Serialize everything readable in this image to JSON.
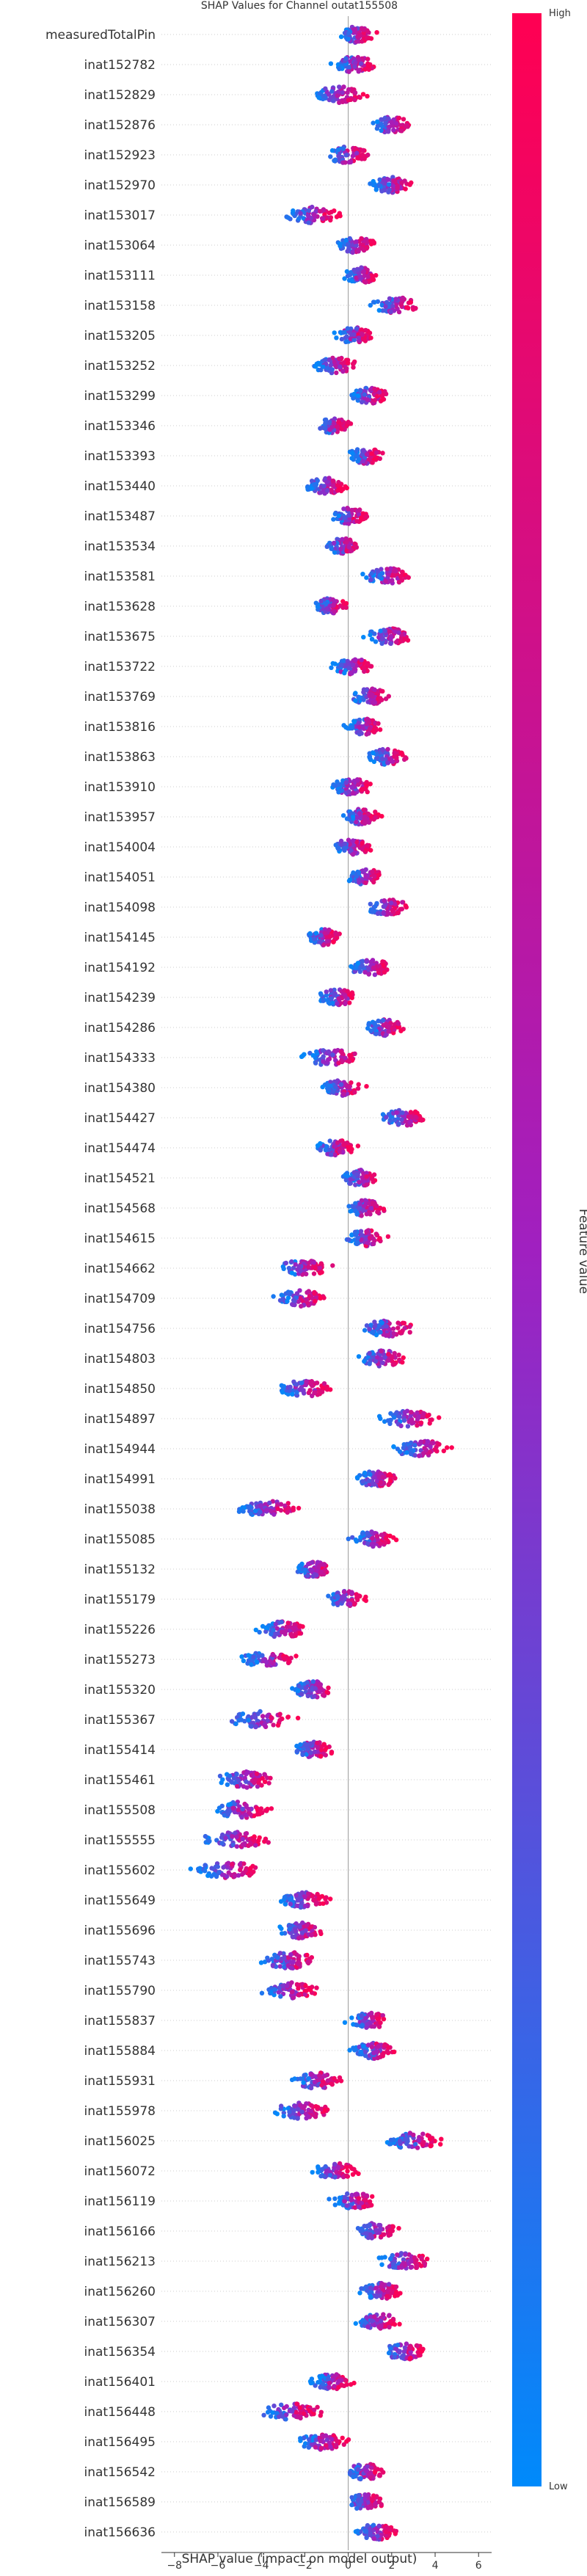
{
  "chart_data": {
    "type": "scatter",
    "subtype": "shap-beeswarm",
    "title": "SHAP Values for Channel outat155508",
    "xlabel": "SHAP value (impact on model output)",
    "ylabel": "",
    "xlim": [
      -8.6,
      6.6
    ],
    "xticks": [
      -8,
      -6,
      -4,
      -2,
      0,
      2,
      4,
      6
    ],
    "grid": false,
    "colorbar": {
      "label": "Feature value",
      "high_label": "High",
      "low_label": "Low",
      "low_color": "#008afb",
      "mid_color": "#a020c0",
      "high_color": "#ff0052"
    },
    "features": [
      {
        "name": "measuredTotalPin",
        "center": 0.4,
        "spread": 0.8,
        "high_dir": 1
      },
      {
        "name": "inat152782",
        "center": 0.3,
        "spread": 1.0,
        "high_dir": 1
      },
      {
        "name": "inat152829",
        "center": -0.4,
        "spread": 1.2,
        "high_dir": 1
      },
      {
        "name": "inat152876",
        "center": 2.0,
        "spread": 1.0,
        "high_dir": 1
      },
      {
        "name": "inat152923",
        "center": -0.1,
        "spread": 1.0,
        "high_dir": 1
      },
      {
        "name": "inat152970",
        "center": 2.0,
        "spread": 1.0,
        "high_dir": 1
      },
      {
        "name": "inat153017",
        "center": -1.6,
        "spread": 1.2,
        "high_dir": 1
      },
      {
        "name": "inat153064",
        "center": 0.4,
        "spread": 0.9,
        "high_dir": 1
      },
      {
        "name": "inat153111",
        "center": 0.6,
        "spread": 0.8,
        "high_dir": 1
      },
      {
        "name": "inat153158",
        "center": 2.2,
        "spread": 1.1,
        "high_dir": 1
      },
      {
        "name": "inat153205",
        "center": 0.3,
        "spread": 0.9,
        "high_dir": 1
      },
      {
        "name": "inat153252",
        "center": -0.6,
        "spread": 1.0,
        "high_dir": 1
      },
      {
        "name": "inat153299",
        "center": 1.0,
        "spread": 0.9,
        "high_dir": 1
      },
      {
        "name": "inat153346",
        "center": -0.7,
        "spread": 0.8,
        "high_dir": 1
      },
      {
        "name": "inat153393",
        "center": 0.8,
        "spread": 0.8,
        "high_dir": 1
      },
      {
        "name": "inat153440",
        "center": -1.0,
        "spread": 1.0,
        "high_dir": 1
      },
      {
        "name": "inat153487",
        "center": 0.1,
        "spread": 0.9,
        "high_dir": 1
      },
      {
        "name": "inat153534",
        "center": -0.2,
        "spread": 0.9,
        "high_dir": 1
      },
      {
        "name": "inat153581",
        "center": 1.8,
        "spread": 1.1,
        "high_dir": 1
      },
      {
        "name": "inat153628",
        "center": -0.8,
        "spread": 0.8,
        "high_dir": 1
      },
      {
        "name": "inat153675",
        "center": 1.9,
        "spread": 1.1,
        "high_dir": 1
      },
      {
        "name": "inat153722",
        "center": 0.2,
        "spread": 0.9,
        "high_dir": 1
      },
      {
        "name": "inat153769",
        "center": 1.0,
        "spread": 0.9,
        "high_dir": 1
      },
      {
        "name": "inat153816",
        "center": 0.7,
        "spread": 0.8,
        "high_dir": 1
      },
      {
        "name": "inat153863",
        "center": 1.8,
        "spread": 0.9,
        "high_dir": 1
      },
      {
        "name": "inat153910",
        "center": 0.2,
        "spread": 1.0,
        "high_dir": 1
      },
      {
        "name": "inat153957",
        "center": 0.6,
        "spread": 0.9,
        "high_dir": 1
      },
      {
        "name": "inat154004",
        "center": 0.2,
        "spread": 0.9,
        "high_dir": 1
      },
      {
        "name": "inat154051",
        "center": 0.8,
        "spread": 0.9,
        "high_dir": 1
      },
      {
        "name": "inat154098",
        "center": 1.8,
        "spread": 1.0,
        "high_dir": 1
      },
      {
        "name": "inat154145",
        "center": -1.1,
        "spread": 0.8,
        "high_dir": 1
      },
      {
        "name": "inat154192",
        "center": 1.0,
        "spread": 1.0,
        "high_dir": 1
      },
      {
        "name": "inat154239",
        "center": -0.5,
        "spread": 0.9,
        "high_dir": 1
      },
      {
        "name": "inat154286",
        "center": 1.7,
        "spread": 0.9,
        "high_dir": 1
      },
      {
        "name": "inat154333",
        "center": -0.8,
        "spread": 1.3,
        "high_dir": 1
      },
      {
        "name": "inat154380",
        "center": -0.3,
        "spread": 0.9,
        "high_dir": 1
      },
      {
        "name": "inat154427",
        "center": 2.6,
        "spread": 1.1,
        "high_dir": 1
      },
      {
        "name": "inat154474",
        "center": -0.6,
        "spread": 0.9,
        "high_dir": 1
      },
      {
        "name": "inat154521",
        "center": 0.6,
        "spread": 0.9,
        "high_dir": 1
      },
      {
        "name": "inat154568",
        "center": 0.8,
        "spread": 0.9,
        "high_dir": 1
      },
      {
        "name": "inat154615",
        "center": 0.8,
        "spread": 0.9,
        "high_dir": 1
      },
      {
        "name": "inat154662",
        "center": -2.1,
        "spread": 1.2,
        "high_dir": 1
      },
      {
        "name": "inat154709",
        "center": -2.2,
        "spread": 1.2,
        "high_dir": 1
      },
      {
        "name": "inat154756",
        "center": 1.8,
        "spread": 1.2,
        "high_dir": 1
      },
      {
        "name": "inat154803",
        "center": 1.6,
        "spread": 1.1,
        "high_dir": 1
      },
      {
        "name": "inat154850",
        "center": -2.0,
        "spread": 1.3,
        "high_dir": 1
      },
      {
        "name": "inat154897",
        "center": 2.8,
        "spread": 1.3,
        "high_dir": 1
      },
      {
        "name": "inat154944",
        "center": 3.4,
        "spread": 1.4,
        "high_dir": 1
      },
      {
        "name": "inat154991",
        "center": 1.3,
        "spread": 1.0,
        "high_dir": 1
      },
      {
        "name": "inat155038",
        "center": -3.6,
        "spread": 1.4,
        "high_dir": 1
      },
      {
        "name": "inat155085",
        "center": 1.1,
        "spread": 1.0,
        "high_dir": 1
      },
      {
        "name": "inat155132",
        "center": -1.6,
        "spread": 0.9,
        "high_dir": 1
      },
      {
        "name": "inat155179",
        "center": -0.1,
        "spread": 0.9,
        "high_dir": 1
      },
      {
        "name": "inat155226",
        "center": -3.0,
        "spread": 1.2,
        "high_dir": 1
      },
      {
        "name": "inat155273",
        "center": -3.7,
        "spread": 1.3,
        "high_dir": 1
      },
      {
        "name": "inat155320",
        "center": -1.6,
        "spread": 1.0,
        "high_dir": 1
      },
      {
        "name": "inat155367",
        "center": -4.0,
        "spread": 1.5,
        "high_dir": 1
      },
      {
        "name": "inat155414",
        "center": -1.6,
        "spread": 1.0,
        "high_dir": 1
      },
      {
        "name": "inat155461",
        "center": -4.7,
        "spread": 1.4,
        "high_dir": 1
      },
      {
        "name": "inat155508",
        "center": -4.9,
        "spread": 1.3,
        "high_dir": 1
      },
      {
        "name": "inat155555",
        "center": -5.2,
        "spread": 1.5,
        "high_dir": 1
      },
      {
        "name": "inat155602",
        "center": -5.5,
        "spread": 1.6,
        "high_dir": 1
      },
      {
        "name": "inat155649",
        "center": -2.0,
        "spread": 1.1,
        "high_dir": 1
      },
      {
        "name": "inat155696",
        "center": -2.2,
        "spread": 1.1,
        "high_dir": 1
      },
      {
        "name": "inat155743",
        "center": -2.7,
        "spread": 1.3,
        "high_dir": 1
      },
      {
        "name": "inat155790",
        "center": -2.7,
        "spread": 1.3,
        "high_dir": 1
      },
      {
        "name": "inat155837",
        "center": 1.0,
        "spread": 0.9,
        "high_dir": 1
      },
      {
        "name": "inat155884",
        "center": 1.2,
        "spread": 1.0,
        "high_dir": 1
      },
      {
        "name": "inat155931",
        "center": -1.4,
        "spread": 1.2,
        "high_dir": 1
      },
      {
        "name": "inat155978",
        "center": -2.2,
        "spread": 1.3,
        "high_dir": 1
      },
      {
        "name": "inat156025",
        "center": 3.0,
        "spread": 1.3,
        "high_dir": 1
      },
      {
        "name": "inat156072",
        "center": -0.6,
        "spread": 1.0,
        "high_dir": 1
      },
      {
        "name": "inat156119",
        "center": 0.3,
        "spread": 1.1,
        "high_dir": 1
      },
      {
        "name": "inat156166",
        "center": 1.3,
        "spread": 1.0,
        "high_dir": 1
      },
      {
        "name": "inat156213",
        "center": 2.6,
        "spread": 1.2,
        "high_dir": 1
      },
      {
        "name": "inat156260",
        "center": 1.5,
        "spread": 1.0,
        "high_dir": 1
      },
      {
        "name": "inat156307",
        "center": 1.4,
        "spread": 1.0,
        "high_dir": 1
      },
      {
        "name": "inat156354",
        "center": 2.6,
        "spread": 1.1,
        "high_dir": 1
      },
      {
        "name": "inat156401",
        "center": -0.8,
        "spread": 0.9,
        "high_dir": 1
      },
      {
        "name": "inat156448",
        "center": -2.6,
        "spread": 1.5,
        "high_dir": 1
      },
      {
        "name": "inat156495",
        "center": -1.2,
        "spread": 1.1,
        "high_dir": 1
      },
      {
        "name": "inat156542",
        "center": 0.8,
        "spread": 0.9,
        "high_dir": 1
      },
      {
        "name": "inat156589",
        "center": 0.8,
        "spread": 0.9,
        "high_dir": 1
      },
      {
        "name": "inat156636",
        "center": 1.3,
        "spread": 0.9,
        "high_dir": 1
      }
    ]
  }
}
